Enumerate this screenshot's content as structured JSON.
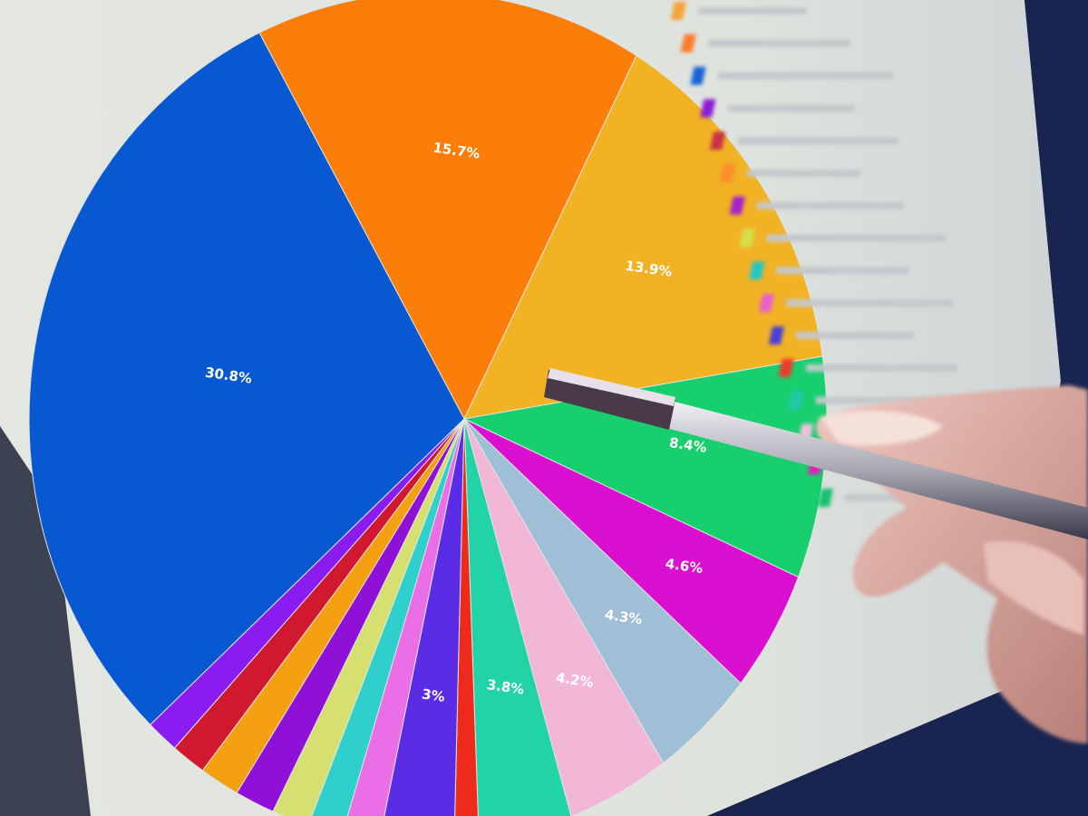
{
  "chart_data": {
    "type": "pie",
    "title": "",
    "start_angle_deg": 335,
    "direction": "clockwise",
    "slices": [
      {
        "value": 15.7,
        "label": "15.7%",
        "color": "#fb7d0a"
      },
      {
        "value": 13.9,
        "label": "13.9%",
        "color": "#f1b224"
      },
      {
        "value": 8.4,
        "label": "8.4%",
        "color": "#18cf6e"
      },
      {
        "value": 4.6,
        "label": "4.6%",
        "color": "#db0fd0"
      },
      {
        "value": 4.3,
        "label": "4.3%",
        "color": "#9fbfd6"
      },
      {
        "value": 4.2,
        "label": "4.2%",
        "color": "#f2b6d6"
      },
      {
        "value": 3.8,
        "label": "3.8%",
        "color": "#22d3a8"
      },
      {
        "value": 1.0,
        "label": "",
        "color": "#ee2a1c"
      },
      {
        "value": 3.0,
        "label": "3%",
        "color": "#5a2ce6"
      },
      {
        "value": 1.5,
        "label": "",
        "color": "#ea6fe6"
      },
      {
        "value": 1.4,
        "label": "",
        "color": "#2fd0cc"
      },
      {
        "value": 1.5,
        "label": "",
        "color": "#d6e070"
      },
      {
        "value": 1.6,
        "label": "",
        "color": "#8f10d6"
      },
      {
        "value": 1.6,
        "label": "",
        "color": "#f5a010"
      },
      {
        "value": 1.4,
        "label": "",
        "color": "#d0182e"
      },
      {
        "value": 1.3,
        "label": "",
        "color": "#8a1cf0"
      },
      {
        "value": 30.8,
        "label": "30.8%",
        "color": "#0858d2"
      }
    ],
    "legend": {
      "placement": "right",
      "swatch_colors": [
        "#f5a23a",
        "#fb7d2a",
        "#1565d8",
        "#8a1cd8",
        "#c8304a",
        "#fb8c2a",
        "#a522d0",
        "#d4e04a",
        "#22c8c8",
        "#e860d0",
        "#4a40d8",
        "#ee3a2a",
        "#22c8a8",
        "#f0c0d8",
        "#e01ab8",
        "#18c070"
      ]
    }
  }
}
